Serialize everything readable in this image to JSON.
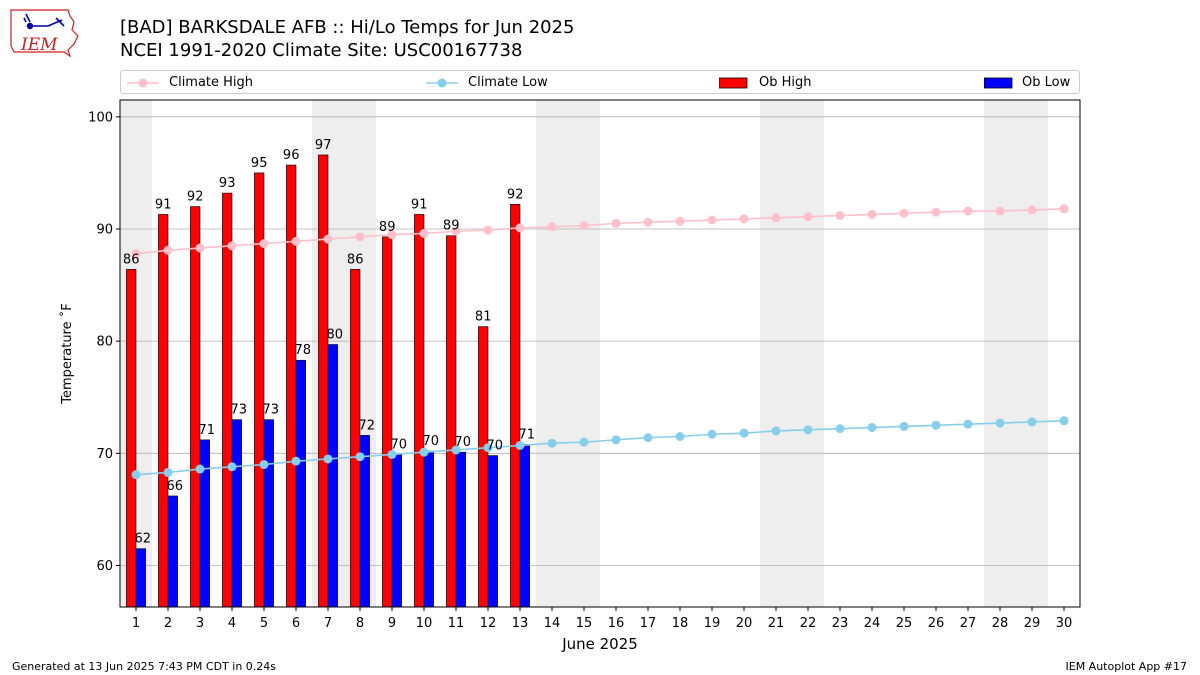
{
  "header": {
    "title_line1": "[BAD] BARKSDALE AFB :: Hi/Lo Temps for Jun 2025",
    "title_line2": "NCEI 1991-2020 Climate Site: USC00167738",
    "logo_text": "IEM"
  },
  "legend": {
    "climate_high": "Climate High",
    "climate_low": "Climate Low",
    "ob_high": "Ob High",
    "ob_low": "Ob Low"
  },
  "footer": {
    "left": "Generated at 13 Jun 2025 7:43 PM CDT in 0.24s",
    "right": "IEM Autoplot App #17"
  },
  "colors": {
    "ob_high": "#ff0000",
    "ob_low": "#0000ff",
    "climate_high": "#ffc0cb",
    "climate_low": "#87ceeb",
    "weekend_band": "#eeeeee",
    "grid": "#b0b0b0"
  },
  "chart_data": {
    "type": "bar",
    "title": "[BAD] BARKSDALE AFB :: Hi/Lo Temps for Jun 2025",
    "xlabel": "June 2025",
    "ylabel": "Temperature ˚F",
    "ylim": [
      56.3,
      101.5
    ],
    "xlim": [
      0.5,
      30.5
    ],
    "yticks": [
      60,
      70,
      80,
      90,
      100
    ],
    "days": [
      1,
      2,
      3,
      4,
      5,
      6,
      7,
      8,
      9,
      10,
      11,
      12,
      13,
      14,
      15,
      16,
      17,
      18,
      19,
      20,
      21,
      22,
      23,
      24,
      25,
      26,
      27,
      28,
      29,
      30
    ],
    "weekend_bands": [
      [
        0.5,
        1.5
      ],
      [
        6.5,
        8.5
      ],
      [
        13.5,
        15.5
      ],
      [
        20.5,
        22.5
      ],
      [
        27.5,
        29.5
      ]
    ],
    "grid": true,
    "legend_position": "top",
    "series": [
      {
        "name": "Ob High",
        "kind": "bar",
        "days": [
          1,
          2,
          3,
          4,
          5,
          6,
          7,
          8,
          9,
          10,
          11,
          12,
          13
        ],
        "values": [
          86.4,
          91.3,
          92.0,
          93.2,
          95.0,
          95.7,
          96.6,
          86.4,
          89.3,
          91.3,
          89.4,
          81.3,
          92.2
        ],
        "labels": [
          "86",
          "91",
          "92",
          "93",
          "95",
          "96",
          "97",
          "86",
          "89",
          "91",
          "89",
          "81",
          "92"
        ]
      },
      {
        "name": "Ob Low",
        "kind": "bar",
        "days": [
          1,
          2,
          3,
          4,
          5,
          6,
          7,
          8,
          9,
          10,
          11,
          12,
          13
        ],
        "values": [
          61.5,
          66.2,
          71.2,
          73.0,
          73.0,
          78.3,
          79.7,
          71.6,
          69.9,
          70.2,
          70.1,
          69.8,
          70.8
        ],
        "labels": [
          "62",
          "66",
          "71",
          "73",
          "73",
          "78",
          "80",
          "72",
          "70",
          "70",
          "70",
          "70",
          "71"
        ]
      },
      {
        "name": "Climate High",
        "kind": "line",
        "days": [
          1,
          2,
          3,
          4,
          5,
          6,
          7,
          8,
          9,
          10,
          11,
          12,
          13,
          14,
          15,
          16,
          17,
          18,
          19,
          20,
          21,
          22,
          23,
          24,
          25,
          26,
          27,
          28,
          29,
          30
        ],
        "values": [
          87.8,
          88.1,
          88.3,
          88.5,
          88.7,
          88.9,
          89.1,
          89.3,
          89.5,
          89.6,
          89.8,
          89.9,
          90.1,
          90.2,
          90.3,
          90.5,
          90.6,
          90.7,
          90.8,
          90.9,
          91.0,
          91.1,
          91.2,
          91.3,
          91.4,
          91.5,
          91.6,
          91.6,
          91.7,
          91.8
        ]
      },
      {
        "name": "Climate Low",
        "kind": "line",
        "days": [
          1,
          2,
          3,
          4,
          5,
          6,
          7,
          8,
          9,
          10,
          11,
          12,
          13,
          14,
          15,
          16,
          17,
          18,
          19,
          20,
          21,
          22,
          23,
          24,
          25,
          26,
          27,
          28,
          29,
          30
        ],
        "values": [
          68.1,
          68.3,
          68.6,
          68.8,
          69.0,
          69.3,
          69.5,
          69.7,
          69.9,
          70.1,
          70.3,
          70.5,
          70.7,
          70.9,
          71.0,
          71.2,
          71.4,
          71.5,
          71.7,
          71.8,
          72.0,
          72.1,
          72.2,
          72.3,
          72.4,
          72.5,
          72.6,
          72.7,
          72.8,
          72.9
        ]
      }
    ]
  }
}
